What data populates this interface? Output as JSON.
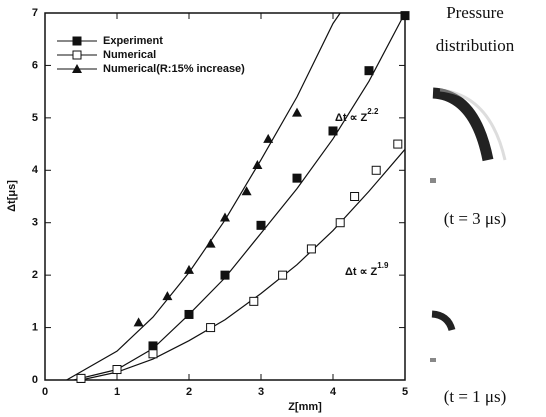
{
  "chart_data": {
    "type": "line",
    "x_label": "Z[mm]",
    "y_label": "Δt[μs]",
    "xlim": [
      0,
      5
    ],
    "ylim": [
      0,
      7
    ],
    "xticks": [
      0,
      1,
      2,
      3,
      4,
      5
    ],
    "yticks": [
      0,
      1,
      2,
      3,
      4,
      5,
      6,
      7
    ],
    "legend": "upper-left",
    "series": [
      {
        "name": "Experiment",
        "marker": "filled-square",
        "color": "#111111",
        "x": [
          0.5,
          1,
          1.5,
          2,
          2.5,
          3,
          3.5,
          4,
          4.5,
          5
        ],
        "values": [
          0.03,
          0.2,
          0.65,
          1.25,
          2.0,
          2.95,
          3.85,
          4.75,
          5.9,
          6.95
        ],
        "fit_x": [
          0.4,
          1,
          1.5,
          2,
          2.5,
          3,
          3.5,
          4,
          4.5,
          5
        ],
        "fit_y": [
          0,
          0.2,
          0.6,
          1.25,
          1.95,
          2.8,
          3.65,
          4.6,
          5.7,
          7
        ]
      },
      {
        "name": "Numerical",
        "marker": "open-square",
        "color": "#111111",
        "x": [
          0.5,
          1,
          1.5,
          2.3,
          2.9,
          3.3,
          3.7,
          4.1,
          4.3,
          4.6,
          4.9
        ],
        "values": [
          0.03,
          0.2,
          0.5,
          1.0,
          1.5,
          2.0,
          2.5,
          3.0,
          3.5,
          4.0,
          4.5
        ],
        "fit_x": [
          0.5,
          1,
          1.5,
          2,
          2.5,
          3,
          3.5,
          4,
          4.5,
          5
        ],
        "fit_y": [
          0,
          0.15,
          0.4,
          0.75,
          1.15,
          1.65,
          2.2,
          2.85,
          3.6,
          4.4
        ]
      },
      {
        "name": "Numerical(R:15% increase)",
        "marker": "triangle",
        "color": "#111111",
        "x": [
          1.3,
          1.7,
          2,
          2.3,
          2.5,
          2.8,
          2.95,
          3.1,
          3.5
        ],
        "values": [
          1.1,
          1.6,
          2.1,
          2.6,
          3.1,
          3.6,
          4.1,
          4.6,
          5.1
        ],
        "fit_x": [
          0.3,
          1,
          1.5,
          2,
          2.5,
          3,
          3.5,
          4,
          4.1
        ],
        "fit_y": [
          0,
          0.55,
          1.2,
          2.05,
          3.05,
          4.2,
          5.4,
          6.8,
          7
        ]
      }
    ],
    "annotations": [
      {
        "base": "Δt ∝ Z",
        "exponent": "2.2"
      },
      {
        "base": "Δt ∝ Z",
        "exponent": "1.9"
      }
    ]
  },
  "side_panel": {
    "title_line1": "Pressure",
    "title_line2": "distribution",
    "caption_top": "(t = 3 μs)",
    "caption_bottom": "(t = 1 μs)"
  }
}
